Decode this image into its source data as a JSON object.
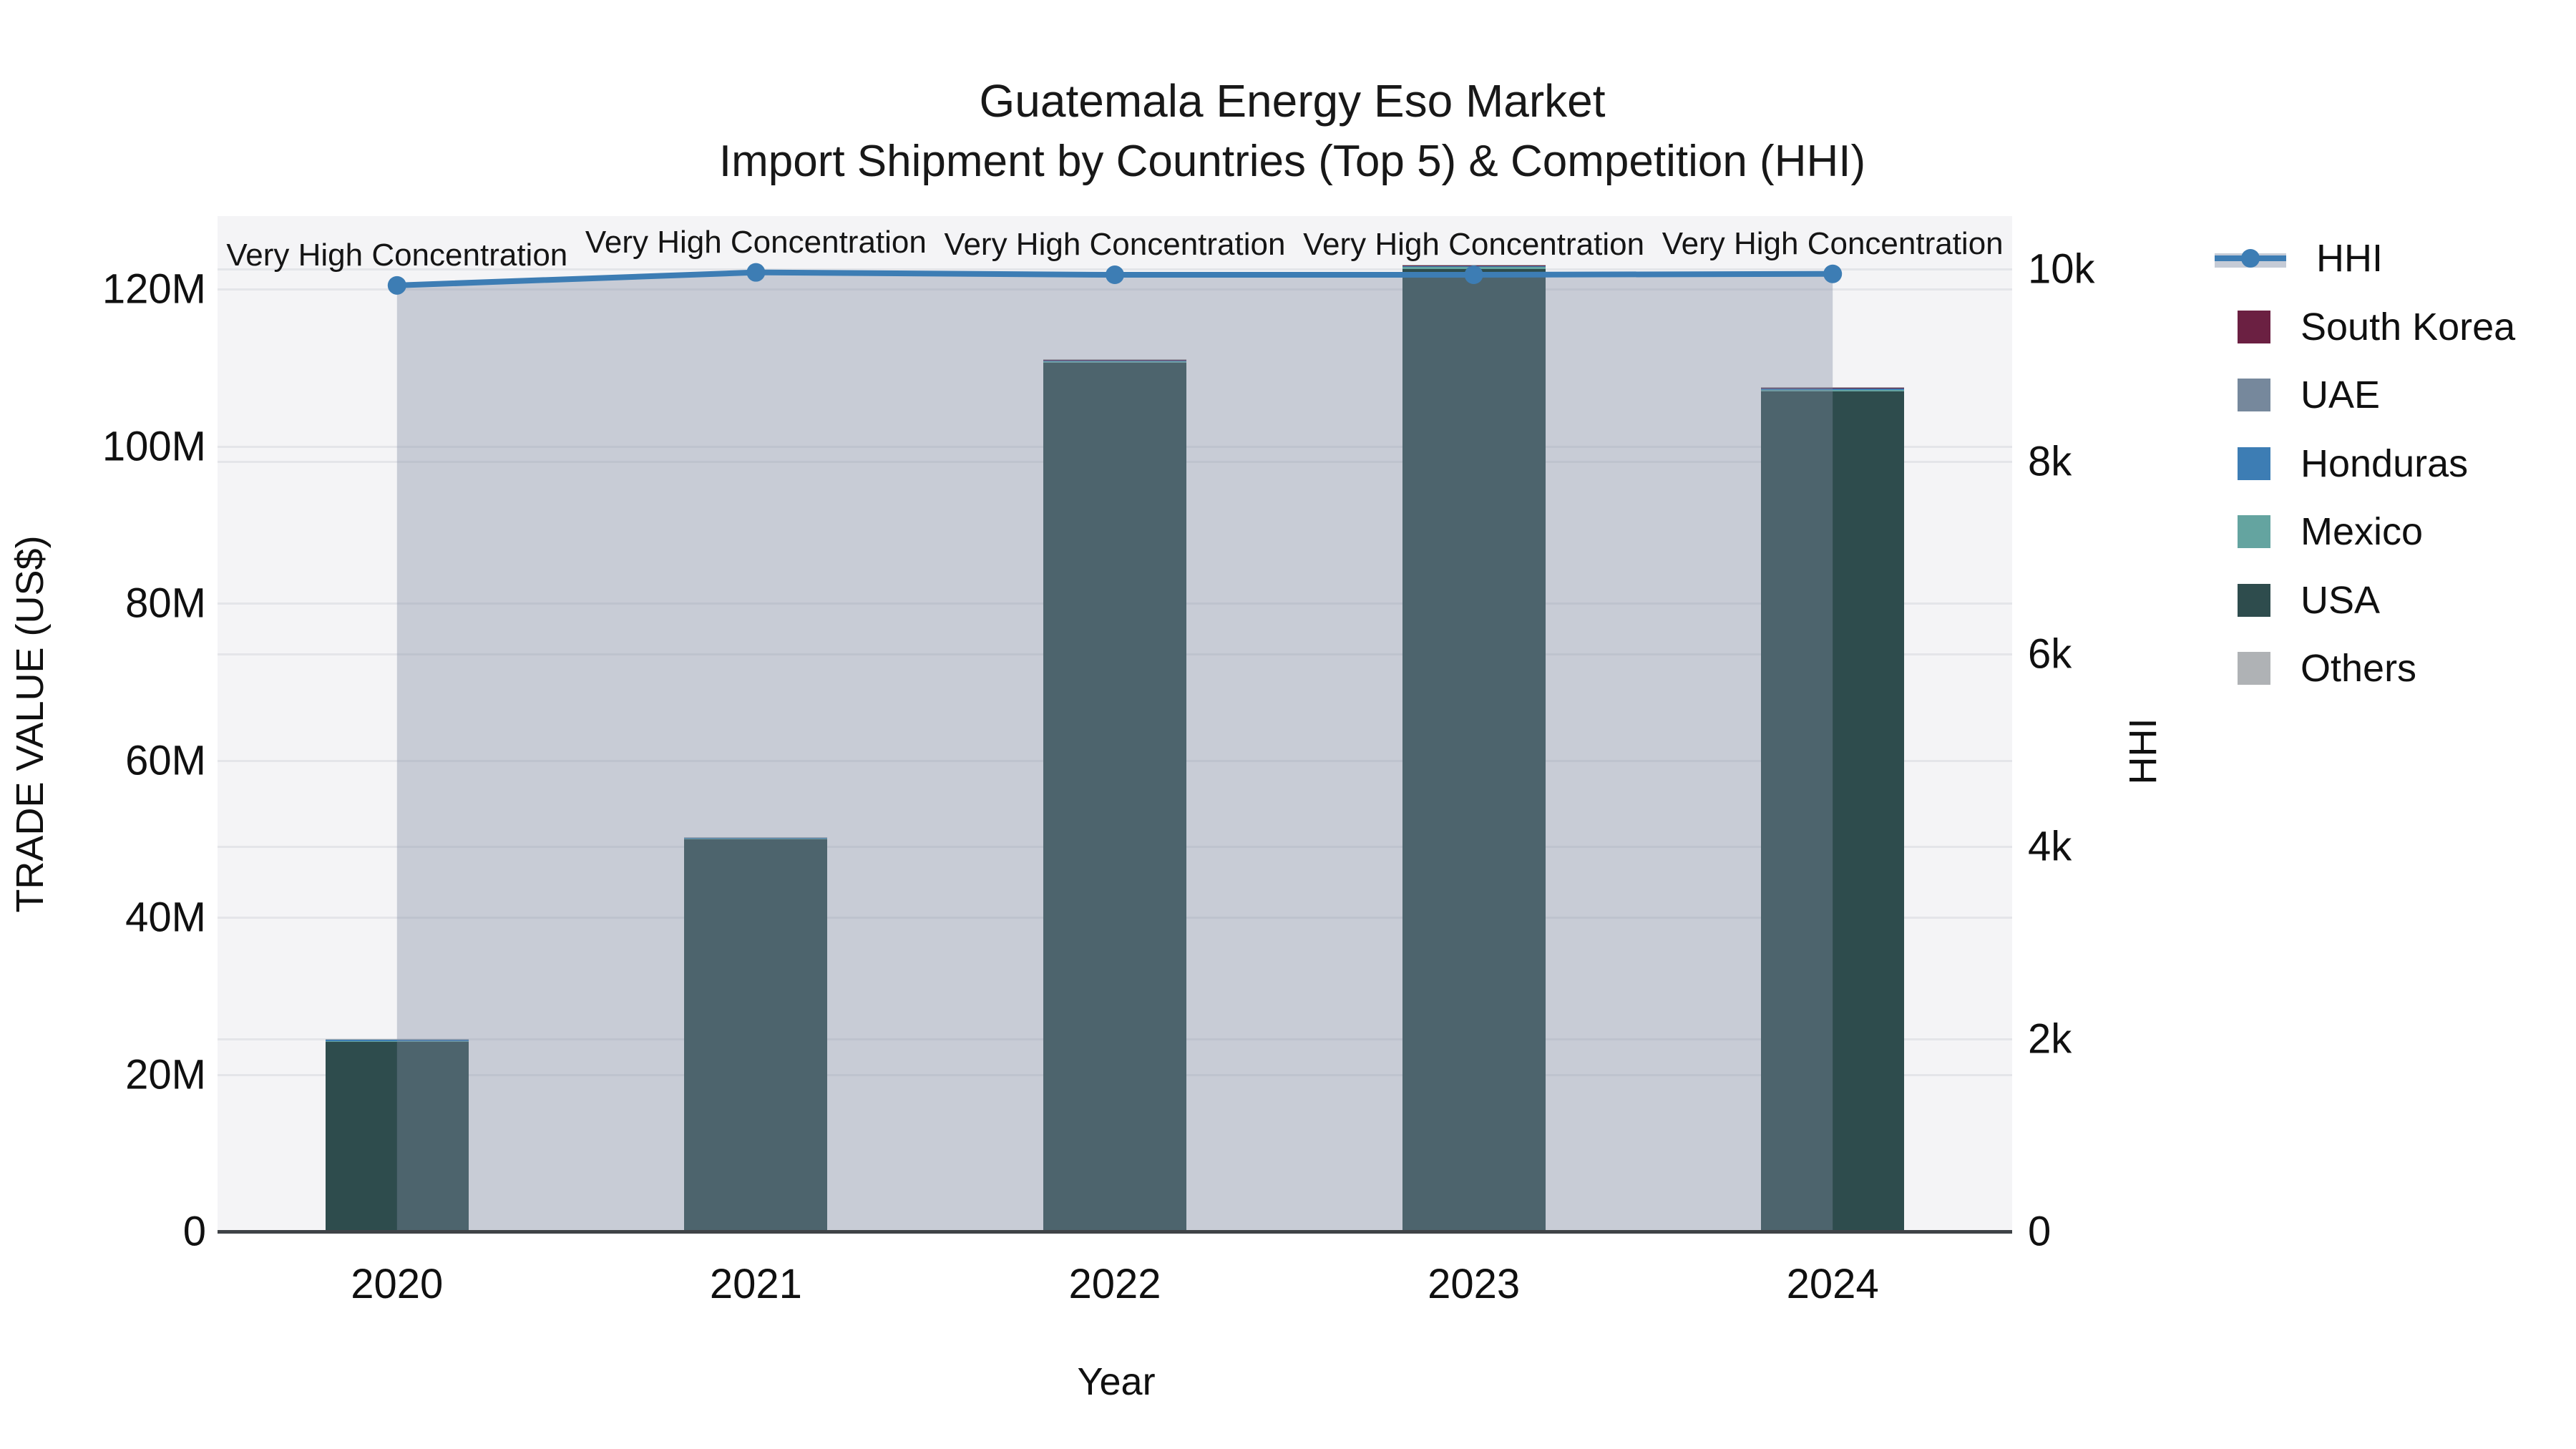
{
  "title": "Guatemala Energy Eso Market",
  "subtitle": "Import Shipment by Countries (Top 5) & Competition (HHI)",
  "axes": {
    "left": {
      "title": "TRADE VALUE (US$)",
      "ticks": [
        {
          "label": "0",
          "value": 0
        },
        {
          "label": "20M",
          "value": 20
        },
        {
          "label": "40M",
          "value": 40
        },
        {
          "label": "60M",
          "value": 60
        },
        {
          "label": "80M",
          "value": 80
        },
        {
          "label": "100M",
          "value": 100
        },
        {
          "label": "120M",
          "value": 120
        }
      ]
    },
    "right": {
      "title": "HHI",
      "ticks": [
        {
          "label": "0",
          "value": 0
        },
        {
          "label": "2k",
          "value": 2000
        },
        {
          "label": "4k",
          "value": 4000
        },
        {
          "label": "6k",
          "value": 6000
        },
        {
          "label": "8k",
          "value": 8000
        },
        {
          "label": "10k",
          "value": 10000
        }
      ]
    },
    "x": {
      "title": "Year"
    }
  },
  "chart_data": {
    "type": "combo-stacked-bar-line",
    "bar_unit": "US$ millions",
    "categories": [
      "2020",
      "2021",
      "2022",
      "2023",
      "2024"
    ],
    "series": [
      {
        "name": "USA",
        "color": "#2e4c4d",
        "values": [
          24.2,
          49.9,
          110.6,
          122.6,
          107.0
        ]
      },
      {
        "name": "Mexico",
        "color": "#64a4a0",
        "values": [
          0.05,
          0.18,
          0.2,
          0.2,
          0.2
        ]
      },
      {
        "name": "Honduras",
        "color": "#3d7db4",
        "values": [
          0.2,
          0.06,
          0.12,
          0.15,
          0.14
        ]
      },
      {
        "name": "UAE",
        "color": "#76889c",
        "values": [
          0.02,
          0.03,
          0.06,
          0.06,
          0.06
        ]
      },
      {
        "name": "South Korea",
        "color": "#6b2042",
        "values": [
          0.01,
          0.02,
          0.03,
          0.04,
          0.03
        ]
      },
      {
        "name": "Others",
        "color": "#afb2b5",
        "values": [
          0.04,
          0.06,
          0.1,
          0.08,
          0.08
        ]
      }
    ],
    "bar_totals_m": [
      24.5,
      50.2,
      111.1,
      123.1,
      107.5
    ],
    "line_series": {
      "name": "HHI",
      "axis": "right",
      "color": "#3d7db4",
      "fill_color": "rgba(128,140,164,0.38)",
      "values": [
        9830,
        9965,
        9940,
        9940,
        9950
      ]
    },
    "annotations": [
      "Very High Concentration",
      "Very High Concentration",
      "Very High Concentration",
      "Very High Concentration",
      "Very High Concentration"
    ],
    "ylim_left_m": [
      0,
      129.3
    ],
    "ylim_right": [
      0,
      10550
    ],
    "grid": true,
    "legend_position": "right"
  },
  "legend": {
    "items": [
      {
        "label": "HHI",
        "kind": "line",
        "color": "#3d7db4",
        "band_color": "#c5cbd6"
      },
      {
        "label": "South Korea",
        "kind": "swatch",
        "color": "#6b2042"
      },
      {
        "label": "UAE",
        "kind": "swatch",
        "color": "#76889c"
      },
      {
        "label": "Honduras",
        "kind": "swatch",
        "color": "#3d7db4"
      },
      {
        "label": "Mexico",
        "kind": "swatch",
        "color": "#64a4a0"
      },
      {
        "label": "USA",
        "kind": "swatch",
        "color": "#2e4c4d"
      },
      {
        "label": "Others",
        "kind": "swatch",
        "color": "#afb2b5"
      }
    ]
  },
  "colors": {
    "plot_background": "#f4f4f6",
    "figure_background": "#ffffff",
    "gridline": "#e4e5e9",
    "axis_line": "#3f4347",
    "text": "#101010",
    "hhi_line": "#3d7db4",
    "hhi_fill": "rgba(128,140,164,0.38)"
  }
}
